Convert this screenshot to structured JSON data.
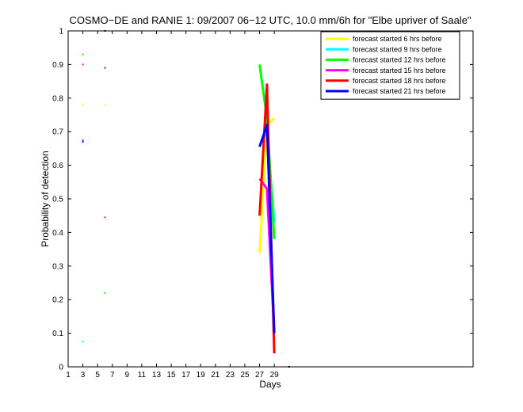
{
  "chart_data": {
    "type": "line",
    "title": "COSMO−DE and RANIE 1: 09/2007 06−12 UTC, 10.0 mm/6h for \"Elbe upriver of Saale\"",
    "xlabel": "Days",
    "ylabel": "Probability of detection",
    "xlim": [
      1,
      56
    ],
    "ylim": [
      0,
      1
    ],
    "xticks": [
      1,
      3,
      5,
      7,
      9,
      11,
      13,
      15,
      17,
      19,
      21,
      23,
      25,
      27,
      29
    ],
    "xtick_labels": [
      "1",
      "3",
      "5",
      "7",
      "9",
      "11",
      "13",
      "15",
      "17",
      "19",
      "21",
      "23",
      "25",
      "27",
      "29"
    ],
    "yticks": [
      0,
      0.1,
      0.2,
      0.3,
      0.4,
      0.5,
      0.6,
      0.7,
      0.8,
      0.9,
      1
    ],
    "ytick_labels": [
      "0",
      "0.1",
      "0.2",
      "0.3",
      "0.4",
      "0.5",
      "0.6",
      "0.7",
      "0.8",
      "0.9",
      "1"
    ],
    "grid": false,
    "legend_position": "top-right",
    "series": [
      {
        "name": "forecast started 6 hrs before",
        "color": "#ffff00",
        "points": [
          [
            3,
            0.78
          ],
          [
            6,
            0.78
          ]
        ],
        "line": [
          [
            27,
            0.34
          ],
          [
            28,
            0.72
          ],
          [
            29,
            0.74
          ]
        ]
      },
      {
        "name": "forecast started 9 hrs before",
        "color": "#00ffff",
        "points": [
          [
            3,
            0.075
          ]
        ],
        "line": [
          [
            27,
            0.66
          ],
          [
            28,
            0.7
          ],
          [
            29,
            0.43
          ]
        ]
      },
      {
        "name": "forecast started 12 hrs before",
        "color": "#00ff00",
        "points": [
          [
            3,
            0.93
          ],
          [
            6,
            0.22
          ]
        ],
        "line": [
          [
            27,
            0.9
          ],
          [
            28,
            0.74
          ],
          [
            29,
            0.38
          ]
        ]
      },
      {
        "name": "forecast started 15 hrs before",
        "color": "#ff00ff",
        "points": [
          [
            3,
            0.9
          ],
          [
            3,
            0.675
          ],
          [
            6,
            0.445
          ]
        ],
        "line": [
          [
            27,
            0.56
          ],
          [
            28,
            0.53
          ],
          [
            29,
            0.1
          ]
        ]
      },
      {
        "name": "forecast started 18 hrs before",
        "color": "#ff0000",
        "points": [
          [
            6,
            0.89
          ]
        ],
        "line": [
          [
            27,
            0.45
          ],
          [
            28,
            0.84
          ],
          [
            29,
            0.04
          ]
        ]
      },
      {
        "name": "forecast started 21 hrs before",
        "color": "#0000ff",
        "points": [
          [
            3,
            0.67
          ],
          [
            6,
            1.0
          ],
          [
            31,
            0.0
          ]
        ],
        "line": [
          [
            27,
            0.655
          ],
          [
            28,
            0.72
          ],
          [
            29,
            0.1
          ]
        ]
      }
    ]
  }
}
